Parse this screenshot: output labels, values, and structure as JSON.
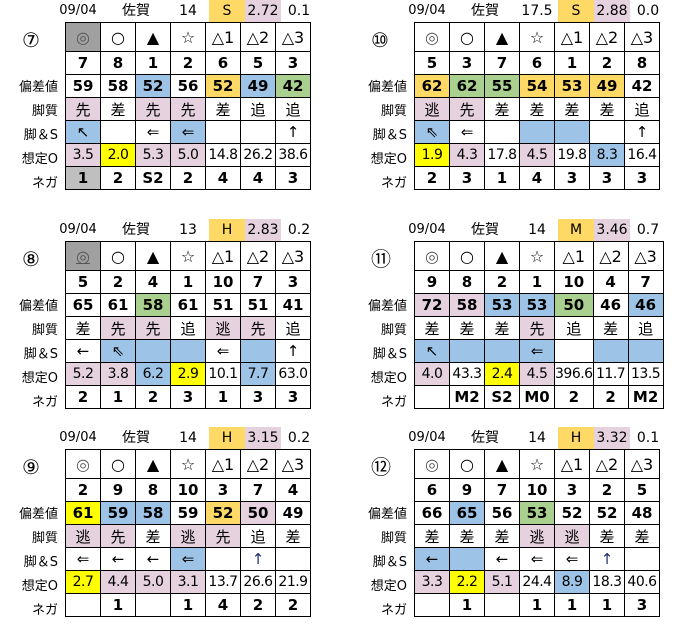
{
  "palette": {
    "o": "#FFD966",
    "p": "#E6D2DF",
    "b": "#9DC3E6",
    "g": "#A9D08E",
    "y": "#FFFF00",
    "d": "#A0A0A0",
    "l": "#BFBFBF"
  },
  "row_labels": [
    "",
    "",
    "偏差値",
    "脚質",
    "脚＆S",
    "想定O",
    "ネガ"
  ],
  "blocks": [
    {
      "race": "⑦",
      "date": "09/04",
      "venue": "佐賀",
      "count": "14",
      "grade": "S",
      "index": "2.72",
      "diff": "0.1",
      "rows": [
        [
          [
            "◎",
            "d"
          ],
          [
            "○",
            ""
          ],
          [
            "▲",
            ""
          ],
          [
            "☆",
            ""
          ],
          [
            "△1",
            ""
          ],
          [
            "△2",
            ""
          ],
          [
            "△3",
            ""
          ]
        ],
        [
          [
            "7",
            ""
          ],
          [
            "8",
            ""
          ],
          [
            "1",
            ""
          ],
          [
            "2",
            ""
          ],
          [
            "6",
            ""
          ],
          [
            "5",
            ""
          ],
          [
            "3",
            ""
          ]
        ],
        [
          [
            "59",
            ""
          ],
          [
            "58",
            ""
          ],
          [
            "52",
            "b"
          ],
          [
            "56",
            ""
          ],
          [
            "52",
            "o"
          ],
          [
            "49",
            "b"
          ],
          [
            "42",
            "g"
          ]
        ],
        [
          [
            "先",
            "p"
          ],
          [
            "差",
            ""
          ],
          [
            "先",
            "p"
          ],
          [
            "先",
            "p"
          ],
          [
            "差",
            ""
          ],
          [
            "追",
            ""
          ],
          [
            "追",
            ""
          ]
        ],
        [
          [
            "↖",
            "b"
          ],
          [
            "",
            ""
          ],
          [
            "⇐",
            ""
          ],
          [
            "⇐",
            "b"
          ],
          [
            "",
            ""
          ],
          [
            "",
            ""
          ],
          [
            "↑",
            ""
          ]
        ],
        [
          [
            "3.5",
            "p"
          ],
          [
            "2.0",
            "y"
          ],
          [
            "5.3",
            "p"
          ],
          [
            "5.0",
            "p"
          ],
          [
            "14.8",
            ""
          ],
          [
            "26.2",
            ""
          ],
          [
            "38.6",
            ""
          ]
        ],
        [
          [
            "1",
            "l"
          ],
          [
            "2",
            ""
          ],
          [
            "S2",
            ""
          ],
          [
            "2",
            ""
          ],
          [
            "4",
            ""
          ],
          [
            "4",
            ""
          ],
          [
            "3",
            ""
          ]
        ]
      ]
    },
    {
      "race": "⑩",
      "date": "09/04",
      "venue": "佐賀",
      "count": "17.5",
      "grade": "S",
      "index": "2.88",
      "diff": "0.0",
      "rows": [
        [
          [
            "◎",
            ""
          ],
          [
            "○",
            ""
          ],
          [
            "▲",
            ""
          ],
          [
            "☆",
            ""
          ],
          [
            "△1",
            ""
          ],
          [
            "△2",
            ""
          ],
          [
            "△3",
            ""
          ]
        ],
        [
          [
            "5",
            ""
          ],
          [
            "3",
            ""
          ],
          [
            "7",
            ""
          ],
          [
            "6",
            ""
          ],
          [
            "1",
            ""
          ],
          [
            "2",
            ""
          ],
          [
            "8",
            ""
          ]
        ],
        [
          [
            "62",
            "o"
          ],
          [
            "62",
            "g"
          ],
          [
            "55",
            "g"
          ],
          [
            "54",
            "o"
          ],
          [
            "53",
            "o"
          ],
          [
            "49",
            "o"
          ],
          [
            "42",
            ""
          ]
        ],
        [
          [
            "逃",
            "p"
          ],
          [
            "先",
            "p"
          ],
          [
            "差",
            ""
          ],
          [
            "差",
            ""
          ],
          [
            "差",
            ""
          ],
          [
            "差",
            ""
          ],
          [
            "追",
            ""
          ]
        ],
        [
          [
            "⇖",
            "b"
          ],
          [
            "⇐",
            ""
          ],
          [
            "",
            ""
          ],
          [
            "",
            "b"
          ],
          [
            "",
            "b"
          ],
          [
            "",
            ""
          ],
          [
            "↑",
            ""
          ]
        ],
        [
          [
            "1.9",
            "y"
          ],
          [
            "4.3",
            "p"
          ],
          [
            "17.8",
            ""
          ],
          [
            "4.5",
            "p"
          ],
          [
            "19.8",
            ""
          ],
          [
            "8.3",
            "b"
          ],
          [
            "16.4",
            ""
          ]
        ],
        [
          [
            "2",
            ""
          ],
          [
            "3",
            ""
          ],
          [
            "1",
            ""
          ],
          [
            "4",
            ""
          ],
          [
            "3",
            ""
          ],
          [
            "3",
            ""
          ],
          [
            "3",
            ""
          ]
        ]
      ]
    },
    {
      "race": "⑧",
      "date": "09/04",
      "venue": "佐賀",
      "count": "13",
      "grade": "H",
      "index": "2.83",
      "diff": "0.2",
      "rows": [
        [
          [
            "◎",
            "d"
          ],
          [
            "○",
            ""
          ],
          [
            "▲",
            ""
          ],
          [
            "☆",
            ""
          ],
          [
            "△1",
            ""
          ],
          [
            "△2",
            ""
          ],
          [
            "△3",
            ""
          ]
        ],
        [
          [
            "5",
            ""
          ],
          [
            "2",
            ""
          ],
          [
            "4",
            ""
          ],
          [
            "1",
            ""
          ],
          [
            "10",
            ""
          ],
          [
            "7",
            ""
          ],
          [
            "3",
            ""
          ]
        ],
        [
          [
            "65",
            ""
          ],
          [
            "61",
            ""
          ],
          [
            "58",
            "g"
          ],
          [
            "61",
            ""
          ],
          [
            "51",
            ""
          ],
          [
            "51",
            ""
          ],
          [
            "41",
            ""
          ]
        ],
        [
          [
            "差",
            ""
          ],
          [
            "先",
            "p"
          ],
          [
            "先",
            "p"
          ],
          [
            "追",
            ""
          ],
          [
            "逃",
            "p"
          ],
          [
            "先",
            "p"
          ],
          [
            "追",
            ""
          ]
        ],
        [
          [
            "←",
            ""
          ],
          [
            "⇖",
            "b"
          ],
          [
            "",
            "b"
          ],
          [
            "",
            "b"
          ],
          [
            "⇐",
            ""
          ],
          [
            "",
            "b"
          ],
          [
            "↑",
            ""
          ]
        ],
        [
          [
            "5.2",
            "p"
          ],
          [
            "3.8",
            "p"
          ],
          [
            "6.2",
            "b"
          ],
          [
            "2.9",
            "y"
          ],
          [
            "10.1",
            ""
          ],
          [
            "7.7",
            "b"
          ],
          [
            "63.0",
            ""
          ]
        ],
        [
          [
            "2",
            ""
          ],
          [
            "1",
            ""
          ],
          [
            "2",
            ""
          ],
          [
            "3",
            ""
          ],
          [
            "1",
            ""
          ],
          [
            "3",
            ""
          ],
          [
            "3",
            ""
          ]
        ]
      ]
    },
    {
      "race": "⑪",
      "date": "09/04",
      "venue": "佐賀",
      "count": "14",
      "grade": "M",
      "index": "3.46",
      "diff": "0.7",
      "rows": [
        [
          [
            "◎",
            ""
          ],
          [
            "○",
            ""
          ],
          [
            "▲",
            ""
          ],
          [
            "☆",
            ""
          ],
          [
            "△1",
            ""
          ],
          [
            "△2",
            ""
          ],
          [
            "△3",
            ""
          ]
        ],
        [
          [
            "9",
            ""
          ],
          [
            "8",
            ""
          ],
          [
            "2",
            ""
          ],
          [
            "1",
            ""
          ],
          [
            "10",
            ""
          ],
          [
            "4",
            ""
          ],
          [
            "7",
            ""
          ]
        ],
        [
          [
            "72",
            "p"
          ],
          [
            "58",
            "p"
          ],
          [
            "53",
            "b"
          ],
          [
            "53",
            "b"
          ],
          [
            "50",
            "g"
          ],
          [
            "46",
            ""
          ],
          [
            "46",
            "b"
          ]
        ],
        [
          [
            "差",
            ""
          ],
          [
            "差",
            ""
          ],
          [
            "差",
            ""
          ],
          [
            "先",
            "p"
          ],
          [
            "追",
            ""
          ],
          [
            "差",
            ""
          ],
          [
            "追",
            ""
          ]
        ],
        [
          [
            "↖",
            "b"
          ],
          [
            "",
            "b"
          ],
          [
            "",
            "b"
          ],
          [
            "⇐",
            "b"
          ],
          [
            "",
            ""
          ],
          [
            "",
            "b"
          ],
          [
            "",
            "b"
          ]
        ],
        [
          [
            "4.0",
            "p"
          ],
          [
            "43.3",
            ""
          ],
          [
            "2.4",
            "y"
          ],
          [
            "4.5",
            "p"
          ],
          [
            "396.6",
            ""
          ],
          [
            "11.7",
            ""
          ],
          [
            "13.5",
            ""
          ]
        ],
        [
          [
            "",
            ""
          ],
          [
            "M2",
            ""
          ],
          [
            "S2",
            ""
          ],
          [
            "M0",
            ""
          ],
          [
            "2",
            ""
          ],
          [
            "2",
            ""
          ],
          [
            "M2",
            ""
          ]
        ]
      ]
    },
    {
      "race": "⑨",
      "date": "09/04",
      "venue": "佐賀",
      "count": "14",
      "grade": "H",
      "index": "3.15",
      "diff": "0.2",
      "rows": [
        [
          [
            "◎",
            ""
          ],
          [
            "○",
            ""
          ],
          [
            "▲",
            ""
          ],
          [
            "☆",
            ""
          ],
          [
            "△1",
            ""
          ],
          [
            "△2",
            ""
          ],
          [
            "△3",
            ""
          ]
        ],
        [
          [
            "2",
            ""
          ],
          [
            "9",
            ""
          ],
          [
            "8",
            ""
          ],
          [
            "10",
            ""
          ],
          [
            "3",
            ""
          ],
          [
            "7",
            ""
          ],
          [
            "4",
            ""
          ]
        ],
        [
          [
            "61",
            "y"
          ],
          [
            "59",
            "b"
          ],
          [
            "58",
            "b"
          ],
          [
            "59",
            ""
          ],
          [
            "52",
            "o"
          ],
          [
            "50",
            "p"
          ],
          [
            "49",
            ""
          ]
        ],
        [
          [
            "逃",
            "p"
          ],
          [
            "先",
            "p"
          ],
          [
            "差",
            ""
          ],
          [
            "逃",
            "p"
          ],
          [
            "先",
            "p"
          ],
          [
            "追",
            ""
          ],
          [
            "差",
            ""
          ]
        ],
        [
          [
            "⇐",
            ""
          ],
          [
            "←",
            ""
          ],
          [
            "←",
            ""
          ],
          [
            "⇐",
            "b"
          ],
          [
            "",
            ""
          ],
          [
            "↑",
            ""
          ],
          [
            "",
            ""
          ]
        ],
        [
          [
            "2.7",
            "y"
          ],
          [
            "4.4",
            "p"
          ],
          [
            "5.0",
            "p"
          ],
          [
            "3.1",
            "p"
          ],
          [
            "13.7",
            ""
          ],
          [
            "26.6",
            ""
          ],
          [
            "21.9",
            ""
          ]
        ],
        [
          [
            "",
            ""
          ],
          [
            "1",
            ""
          ],
          [
            "",
            ""
          ],
          [
            "1",
            ""
          ],
          [
            "4",
            ""
          ],
          [
            "2",
            ""
          ],
          [
            "2",
            ""
          ]
        ]
      ]
    },
    {
      "race": "⑫",
      "date": "09/04",
      "venue": "佐賀",
      "count": "14",
      "grade": "H",
      "index": "3.32",
      "diff": "0.1",
      "rows": [
        [
          [
            "◎",
            ""
          ],
          [
            "○",
            ""
          ],
          [
            "▲",
            ""
          ],
          [
            "☆",
            ""
          ],
          [
            "△1",
            ""
          ],
          [
            "△2",
            ""
          ],
          [
            "△3",
            ""
          ]
        ],
        [
          [
            "6",
            ""
          ],
          [
            "9",
            ""
          ],
          [
            "7",
            ""
          ],
          [
            "10",
            ""
          ],
          [
            "3",
            ""
          ],
          [
            "2",
            ""
          ],
          [
            "5",
            ""
          ]
        ],
        [
          [
            "66",
            ""
          ],
          [
            "65",
            "b"
          ],
          [
            "56",
            ""
          ],
          [
            "53",
            "g"
          ],
          [
            "52",
            ""
          ],
          [
            "52",
            ""
          ],
          [
            "48",
            ""
          ]
        ],
        [
          [
            "差",
            ""
          ],
          [
            "差",
            ""
          ],
          [
            "差",
            ""
          ],
          [
            "逃",
            "p"
          ],
          [
            "逃",
            "p"
          ],
          [
            "差",
            ""
          ],
          [
            "差",
            ""
          ]
        ],
        [
          [
            "←",
            "b"
          ],
          [
            "",
            "b"
          ],
          [
            "←",
            ""
          ],
          [
            "⇐",
            ""
          ],
          [
            "⇐",
            ""
          ],
          [
            "↑",
            ""
          ],
          [
            "",
            ""
          ]
        ],
        [
          [
            "3.3",
            "p"
          ],
          [
            "2.2",
            "y"
          ],
          [
            "5.1",
            "p"
          ],
          [
            "24.4",
            ""
          ],
          [
            "8.9",
            "b"
          ],
          [
            "18.3",
            ""
          ],
          [
            "40.6",
            ""
          ]
        ],
        [
          [
            "",
            ""
          ],
          [
            "1",
            ""
          ],
          [
            "",
            ""
          ],
          [
            "1",
            ""
          ],
          [
            "1",
            ""
          ],
          [
            "1",
            ""
          ],
          [
            "3",
            ""
          ]
        ]
      ]
    }
  ]
}
